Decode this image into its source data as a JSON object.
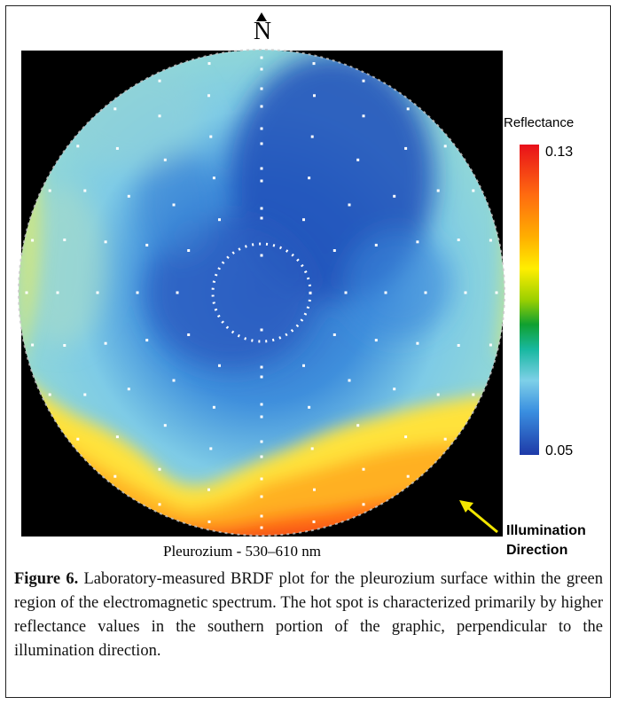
{
  "figure": {
    "north_label": "N",
    "subcaption": "Pleurozium - 530–610 nm",
    "caption_label": "Figure 6.",
    "caption_text": "Laboratory-measured BRDF plot for the pleurozium surface within the green region of the electromagnetic spectrum. The hot spot is characterized primarily by higher reflectance values in the southern portion of the graphic, perpendicular to the illumination direction."
  },
  "legend": {
    "title": "Reflectance",
    "max": "0.13",
    "min": "0.05"
  },
  "illumination": {
    "line1": "Illumination",
    "line2": "Direction",
    "arrow_color": "#f2e600"
  },
  "colors": {
    "high": "#e8101a",
    "mid": "#ffee00",
    "low": "#1e3aa8"
  }
}
